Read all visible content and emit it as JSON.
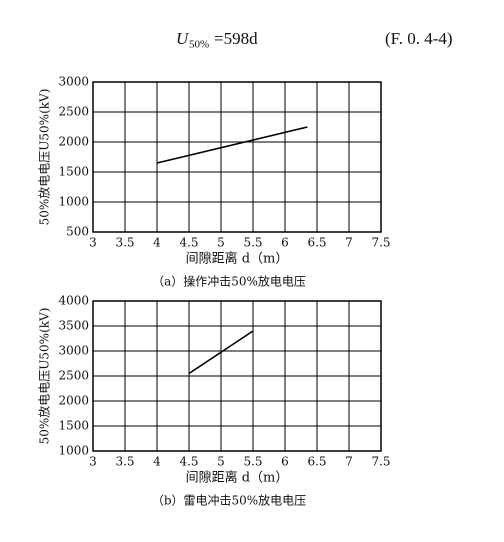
{
  "formula": {
    "lhs": "U",
    "sub": "50%",
    "rhs": "=598d",
    "number": "(F. 0. 4-4)"
  },
  "chart_data": [
    {
      "type": "line",
      "ylabel": "50%放电电压U50%(kV)",
      "xlabel": "间隙距离 d（m）",
      "caption": "（a）操作冲击50%放电电压",
      "x": [
        4,
        6.35
      ],
      "values": [
        1650,
        2250
      ],
      "color": "#000000",
      "xlim": [
        3,
        7.5
      ],
      "xticks": [
        3,
        3.5,
        4,
        4.5,
        5,
        5.5,
        6,
        6.5,
        7,
        7.5
      ],
      "ylim": [
        500,
        3000
      ],
      "yticks": [
        500,
        1000,
        1500,
        2000,
        2500,
        3000
      ],
      "grid": true
    },
    {
      "type": "line",
      "ylabel": "50%放电电压U50%(kV)",
      "xlabel": "间隙距离 d（m）",
      "caption": "（b）雷电冲击50%放电电压",
      "x": [
        4.5,
        5.5
      ],
      "values": [
        2550,
        3400
      ],
      "color": "#000000",
      "xlim": [
        3,
        7.5
      ],
      "xticks": [
        3,
        3.5,
        4,
        4.5,
        5,
        5.5,
        6,
        6.5,
        7,
        7.5
      ],
      "ylim": [
        1000,
        4000
      ],
      "yticks": [
        1000,
        1500,
        2000,
        2500,
        3000,
        3500,
        4000
      ],
      "grid": true
    }
  ]
}
